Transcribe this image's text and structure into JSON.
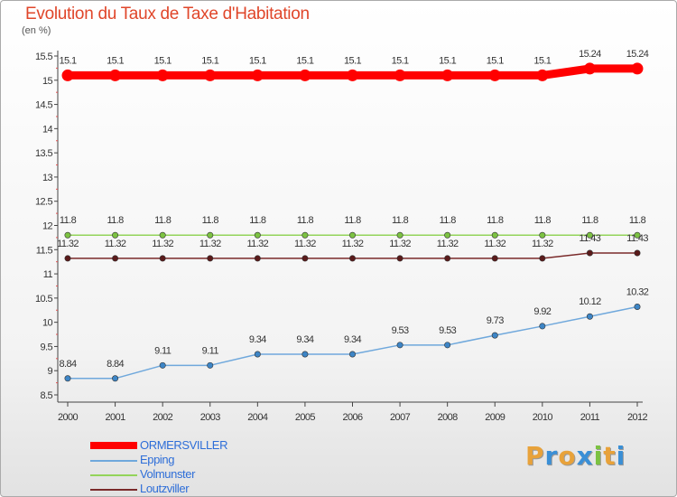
{
  "title": "Evolution du Taux de Taxe d'Habitation",
  "unit_label": "(en %)",
  "logo": {
    "text": "Proxiti",
    "letters": [
      {
        "ch": "P",
        "color": "#e8a23a"
      },
      {
        "ch": "r",
        "color": "#3a8fd6"
      },
      {
        "ch": "o",
        "color": "#e8a23a"
      },
      {
        "ch": "x",
        "color": "#3a8fd6"
      },
      {
        "ch": "i",
        "color": "#7cc242"
      },
      {
        "ch": "t",
        "color": "#e8a23a"
      },
      {
        "ch": "i",
        "color": "#3a8fd6"
      }
    ]
  },
  "chart_data": {
    "type": "line",
    "title": "Evolution du Taux de Taxe d'Habitation",
    "ylabel": "(en %)",
    "xlabel": "",
    "x": [
      "2000",
      "2001",
      "2002",
      "2003",
      "2004",
      "2005",
      "2006",
      "2007",
      "2008",
      "2009",
      "2010",
      "2011",
      "2012"
    ],
    "ylim": [
      8.5,
      15.5
    ],
    "yticks": [
      "8.5",
      "9",
      "9.5",
      "10",
      "10.5",
      "11",
      "11.5",
      "12",
      "12.5",
      "13",
      "13.5",
      "14",
      "14.5",
      "15",
      "15.5"
    ],
    "grid": false,
    "legend_position": "bottom-left",
    "series": [
      {
        "name": "ORMERSVILLER",
        "color": "#ff0000",
        "point_color": "#ff0000",
        "width": "thick",
        "values": [
          15.1,
          15.1,
          15.1,
          15.1,
          15.1,
          15.1,
          15.1,
          15.1,
          15.1,
          15.1,
          15.1,
          15.24,
          15.24
        ],
        "labels": [
          "15.1",
          "15.1",
          "15.1",
          "15.1",
          "15.1",
          "15.1",
          "15.1",
          "15.1",
          "15.1",
          "15.1",
          "15.1",
          "15.24",
          "15.24"
        ]
      },
      {
        "name": "Epping",
        "color": "#6fa8dc",
        "point_color": "#3d85c6",
        "width": "thin",
        "values": [
          8.84,
          8.84,
          9.11,
          9.11,
          9.34,
          9.34,
          9.34,
          9.53,
          9.53,
          9.73,
          9.92,
          10.12,
          10.32
        ],
        "labels": [
          "8.84",
          "8.84",
          "9.11",
          "9.11",
          "9.34",
          "9.34",
          "9.34",
          "9.53",
          "9.53",
          "9.73",
          "9.92",
          "10.12",
          "10.32"
        ]
      },
      {
        "name": "Volmunster",
        "color": "#93d45a",
        "point_color": "#7cc242",
        "width": "thin",
        "values": [
          11.8,
          11.8,
          11.8,
          11.8,
          11.8,
          11.8,
          11.8,
          11.8,
          11.8,
          11.8,
          11.8,
          11.8,
          11.8
        ],
        "labels": [
          "11.8",
          "11.8",
          "11.8",
          "11.8",
          "11.8",
          "11.8",
          "11.8",
          "11.8",
          "11.8",
          "11.8",
          "11.8",
          "11.8",
          "11.8"
        ]
      },
      {
        "name": "Loutzviller",
        "color": "#7a2a2a",
        "point_color": "#5a1a1a",
        "width": "thin",
        "values": [
          11.32,
          11.32,
          11.32,
          11.32,
          11.32,
          11.32,
          11.32,
          11.32,
          11.32,
          11.32,
          11.32,
          11.43,
          11.43
        ],
        "labels": [
          "11.32",
          "11.32",
          "11.32",
          "11.32",
          "11.32",
          "11.32",
          "11.32",
          "11.32",
          "11.32",
          "11.32",
          "11.32",
          "11.43",
          "11.43"
        ]
      }
    ]
  }
}
